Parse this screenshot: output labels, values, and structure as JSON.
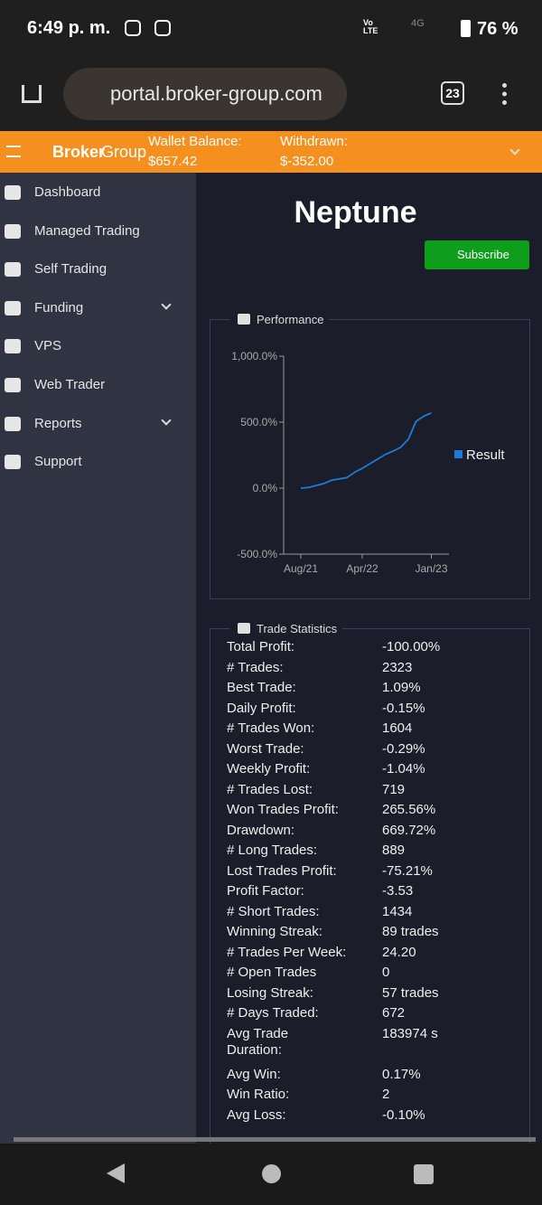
{
  "status_bar": {
    "time": "6:49 p. m.",
    "network": "4G",
    "volte": "Vo LTE",
    "battery": "76 %"
  },
  "browser": {
    "url": "portal.broker-group.com",
    "tabs": "23"
  },
  "header": {
    "brand_bold": "Broker",
    "brand_light": "Group",
    "wallet_label": "Wallet Balance:",
    "wallet_value": "$657.42",
    "withdrawn_label": "Withdrawn:",
    "withdrawn_value": "$-352.00"
  },
  "menu": [
    {
      "label": "Dashboard"
    },
    {
      "label": "Managed Trading"
    },
    {
      "label": "Self Trading"
    },
    {
      "label": "Funding"
    },
    {
      "label": "VPS"
    },
    {
      "label": "Web Trader"
    },
    {
      "label": "Reports"
    },
    {
      "label": "Support"
    }
  ],
  "title": "Neptune",
  "subscribe": "Subscribe",
  "performance": {
    "legend": "Performance",
    "chart_data": {
      "type": "line",
      "categories": [
        "Aug/21",
        null,
        null,
        null,
        null,
        null,
        null,
        null,
        "Apr/22",
        null,
        null,
        null,
        null,
        null,
        null,
        null,
        null,
        "Jan/23"
      ],
      "series": [
        {
          "name": "Result",
          "color": "#1f7bd6",
          "values": [
            0,
            5,
            20,
            35,
            60,
            70,
            80,
            120,
            150,
            185,
            220,
            255,
            280,
            310,
            370,
            505,
            545,
            570
          ]
        }
      ],
      "ylim": [
        -500,
        1000
      ],
      "yticks": [
        {
          "value": 1000,
          "label": "1,000.0%"
        },
        {
          "value": 500,
          "label": "500.0%"
        },
        {
          "value": 0,
          "label": "0.0%"
        },
        {
          "value": -500,
          "label": "-500.0%"
        }
      ]
    }
  },
  "statistics": {
    "legend": "Trade Statistics",
    "rows": [
      [
        "Total Profit:",
        "-100.00%"
      ],
      [
        "# Trades:",
        "2323"
      ],
      [
        "Best Trade:",
        "1.09%"
      ],
      [
        "Daily Profit:",
        "-0.15%"
      ],
      [
        "# Trades Won:",
        "1604"
      ],
      [
        "Worst Trade:",
        "-0.29%"
      ],
      [
        "Weekly Profit:",
        "-1.04%"
      ],
      [
        "# Trades Lost:",
        "719"
      ],
      [
        "Won Trades Profit:",
        "265.56%"
      ],
      [
        "Drawdown:",
        "669.72%"
      ],
      [
        "# Long Trades:",
        "889"
      ],
      [
        "Lost Trades Profit:",
        "-75.21%"
      ],
      [
        "Profit Factor:",
        "-3.53"
      ],
      [
        "# Short Trades:",
        "1434"
      ],
      [
        "Winning Streak:",
        "89 trades"
      ],
      [
        "# Trades Per Week:",
        "24.20"
      ],
      [
        "# Open Trades",
        "0"
      ],
      [
        "Losing Streak:",
        "57 trades"
      ],
      [
        "# Days Traded:",
        "672"
      ],
      [
        "Avg Trade\nDuration:",
        "183974 s"
      ],
      [
        "Avg Win:",
        "0.17%"
      ],
      [
        "Win Ratio:",
        "2"
      ],
      [
        "Avg Loss:",
        "-0.10%"
      ]
    ]
  }
}
